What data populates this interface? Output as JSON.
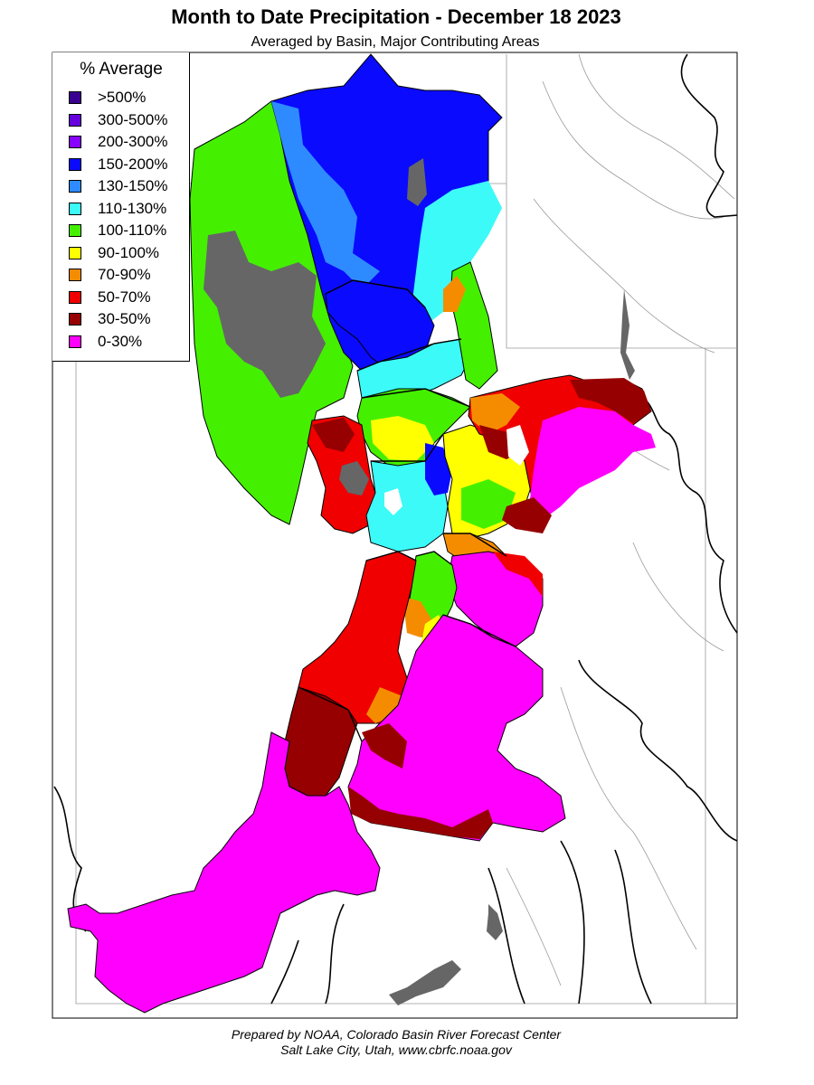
{
  "title": "Month to Date Precipitation - December 18 2023",
  "subtitle": "Averaged by Basin, Major Contributing Areas",
  "legend": {
    "title": "% Average",
    "items": [
      {
        "label": ">500%",
        "color": "#3a0090"
      },
      {
        "label": "300-500%",
        "color": "#6600dd"
      },
      {
        "label": "200-300%",
        "color": "#8800ff"
      },
      {
        "label": "150-200%",
        "color": "#0a0aff"
      },
      {
        "label": "130-150%",
        "color": "#2e8bff"
      },
      {
        "label": "110-130%",
        "color": "#3cfaf8"
      },
      {
        "label": "100-110%",
        "color": "#44f000"
      },
      {
        "label": "90-100%",
        "color": "#ffff00"
      },
      {
        "label": "70-90%",
        "color": "#f58c00"
      },
      {
        "label": "50-70%",
        "color": "#f00000"
      },
      {
        "label": "30-50%",
        "color": "#960000"
      },
      {
        "label": "0-30%",
        "color": "#ff00ff"
      }
    ]
  },
  "no_data_color": "#666666",
  "footer": {
    "line1": "Prepared by NOAA, Colorado Basin River Forecast Center",
    "line2": "Salt Lake City, Utah, www.cbrfc.noaa.gov"
  }
}
